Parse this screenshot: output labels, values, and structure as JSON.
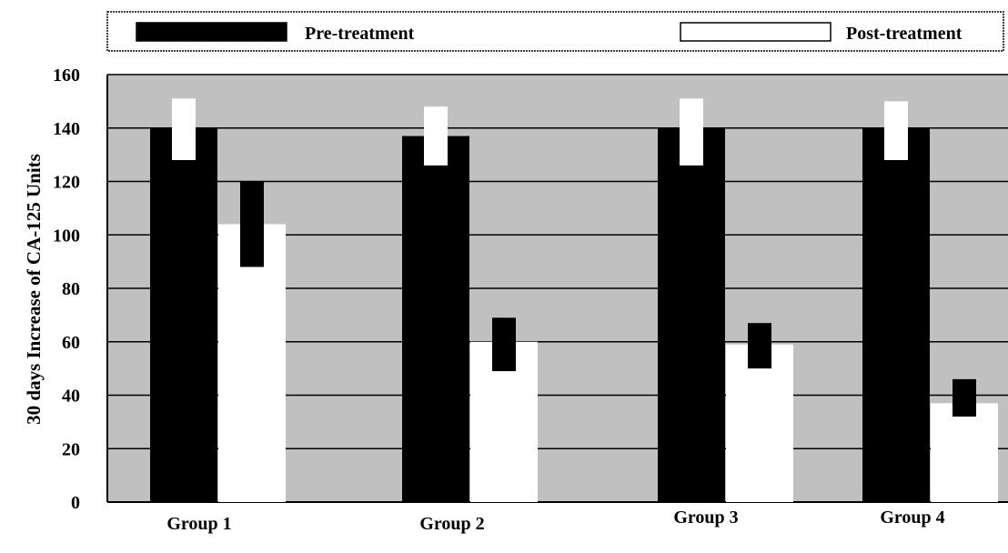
{
  "chart_data": {
    "type": "bar",
    "title": "",
    "xlabel": "",
    "ylabel": "30 days Increase of CA-125 Units",
    "categories": [
      "Group 1",
      "Group 2",
      "Group 3",
      "Group 4"
    ],
    "ylim": [
      0,
      160
    ],
    "yticks": [
      "0",
      "20",
      "40",
      "60",
      "80",
      "100",
      "120",
      "140",
      "160"
    ],
    "grid": true,
    "legend_position": "top",
    "series": [
      {
        "name": "Pre-treatment",
        "color": "#000000",
        "values": [
          140,
          137,
          140,
          140
        ],
        "error_low": [
          128,
          126,
          126,
          128
        ],
        "error_high": [
          151,
          148,
          151,
          150
        ]
      },
      {
        "name": "Post-treatment",
        "color": "#ffffff",
        "values": [
          104,
          60,
          59,
          37
        ],
        "error_low": [
          88,
          49,
          50,
          32
        ],
        "error_high": [
          120,
          69,
          67,
          46
        ]
      }
    ],
    "colors": {
      "plot_background": "#c0c0c0",
      "gridline": "#000000"
    }
  }
}
